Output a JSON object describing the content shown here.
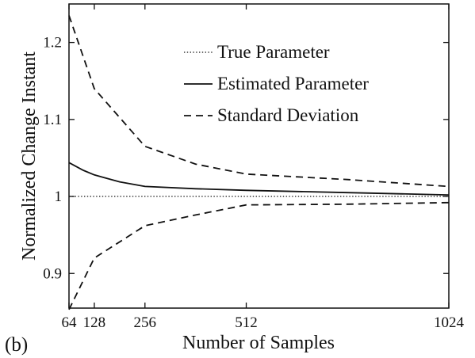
{
  "panel_label": "(b)",
  "chart_data": {
    "type": "line",
    "xlabel": "Number of Samples",
    "ylabel": "Normalized Change Instant",
    "xlim": [
      64,
      1024
    ],
    "ylim": [
      0.855,
      1.25
    ],
    "x_ticks": [
      64,
      128,
      256,
      512,
      1024
    ],
    "y_ticks": [
      0.9,
      1,
      1.1,
      1.2
    ],
    "y_tick_labels": [
      "0.9",
      "1",
      "1.1",
      "1.2"
    ],
    "grid": false,
    "legend_position": "top-right",
    "series": [
      {
        "name": "True Parameter",
        "style": "dotted",
        "x": [
          64,
          128,
          256,
          512,
          768,
          1024
        ],
        "y": [
          1.0,
          1.0,
          1.0,
          1.0,
          1.0,
          1.0
        ]
      },
      {
        "name": "Estimated Parameter",
        "style": "solid",
        "x": [
          64,
          100,
          128,
          192,
          256,
          384,
          512,
          768,
          1024
        ],
        "y": [
          1.044,
          1.034,
          1.028,
          1.019,
          1.013,
          1.01,
          1.008,
          1.005,
          1.002
        ]
      },
      {
        "name": "Standard Deviation",
        "style": "dashed",
        "x": [
          64,
          128,
          256,
          384,
          512,
          768,
          1024
        ],
        "y": [
          1.235,
          1.14,
          1.065,
          1.042,
          1.029,
          1.022,
          1.013
        ]
      },
      {
        "name": "",
        "style": "dashed",
        "x": [
          64,
          128,
          256,
          384,
          512,
          768,
          1024
        ],
        "y": [
          0.853,
          0.92,
          0.962,
          0.976,
          0.989,
          0.99,
          0.992
        ]
      }
    ]
  }
}
